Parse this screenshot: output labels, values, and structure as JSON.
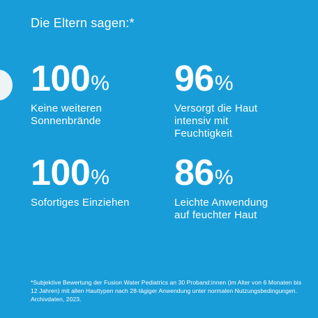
{
  "heading": "Die Eltern sagen:*",
  "stats": [
    {
      "value": "100",
      "unit": "%",
      "label_line1": "Keine weiteren",
      "label_line2": "Sonnenbrände",
      "label_line3": ""
    },
    {
      "value": "96",
      "unit": "%",
      "label_line1": "Versorgt die Haut",
      "label_line2": "intensiv mit",
      "label_line3": "Feuchtigkeit"
    },
    {
      "value": "100",
      "unit": "%",
      "label_line1": "Sofortiges Einziehen",
      "label_line2": "",
      "label_line3": ""
    },
    {
      "value": "86",
      "unit": "%",
      "label_line1": "Leichte Anwendung",
      "label_line2": "auf feuchter Haut",
      "label_line3": ""
    }
  ],
  "footnote": "*Subjektive Bewertung der Fusion Water Pediatrics an 30 Proband:innen (im Alter von 6 Monaten bis 12 Jahren) mit allen Hauttypen nach 28-tägiger Anwendung unter normalen Nutzungsbedingungen. Archivdaten, 2023.",
  "colors": {
    "background": "#199dd8",
    "text": "#ffffff"
  }
}
